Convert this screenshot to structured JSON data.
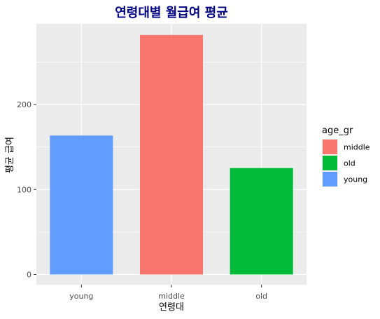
{
  "chart_data": {
    "type": "bar",
    "title": "연령대별 월급여 평균",
    "title_color": "#000080",
    "xlabel": "연령대",
    "ylabel": "평균 급여",
    "categories": [
      "young",
      "middle",
      "old"
    ],
    "values": [
      163.5,
      281.9,
      125.2
    ],
    "fill_groups": [
      "young",
      "middle",
      "old"
    ],
    "ylim": [
      -12,
      295
    ],
    "yticks": [
      0,
      100,
      200
    ],
    "grid": true,
    "legend": {
      "title": "age_gr",
      "placement": "right",
      "entries": [
        {
          "label": "middle",
          "color": "#F8766D"
        },
        {
          "label": "old",
          "color": "#00BA38"
        },
        {
          "label": "young",
          "color": "#619CFF"
        }
      ]
    },
    "colors": {
      "young": "#619CFF",
      "middle": "#F8766D",
      "old": "#00BA38"
    },
    "panel_background": "#EBEBEB",
    "grid_color": "#FFFFFF"
  }
}
